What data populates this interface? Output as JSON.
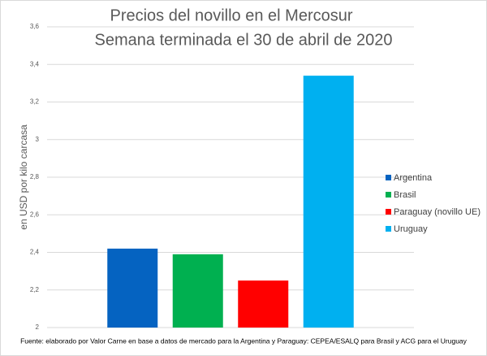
{
  "chart_data": {
    "type": "bar",
    "title": "Precios del novillo en el Mercosur",
    "subtitle": "Semana terminada el 30 de abril de 2020",
    "y_label": "en USD por kilo carcasa",
    "source": "Fuente: elaborado por Valor Carne en base a datos de mercado para la Argentina y Paraguay: CEPEA/ESALQ para Brasil y ACG para el Uruguay",
    "categories": [
      null
    ],
    "series": [
      {
        "name": "Argentina",
        "color": "#0563c1",
        "values": [
          2.42
        ]
      },
      {
        "name": "Brasil",
        "color": "#00b050",
        "values": [
          2.39
        ]
      },
      {
        "name": "Paraguay (novillo UE)",
        "color": "#ff0000",
        "values": [
          2.25
        ]
      },
      {
        "name": "Uruguay",
        "color": "#00b0f0",
        "values": [
          3.34
        ]
      }
    ],
    "ylim": [
      2,
      3.6
    ],
    "yticks": [
      2,
      {
        "value": 2.2,
        "label": "2,2"
      },
      {
        "value": 2.4,
        "label": "2,4"
      },
      {
        "value": 2.6,
        "label": "2,6"
      },
      {
        "value": 2.8,
        "label": "2,8"
      },
      3,
      {
        "value": 3.2,
        "label": "3,2"
      },
      {
        "value": 3.4,
        "label": "3,4"
      },
      {
        "value": 3.6,
        "label": "3,6"
      }
    ],
    "grid": true,
    "legend": "right"
  }
}
